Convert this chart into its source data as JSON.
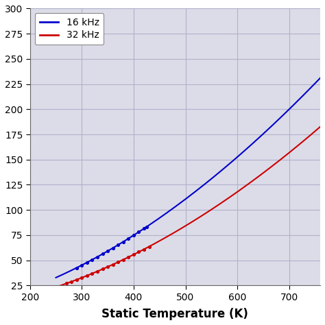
{
  "title": "",
  "xlabel": "Static Temperature (K)",
  "ylabel": "",
  "xlim": [
    200,
    760
  ],
  "ylim": [
    25,
    300
  ],
  "yticks": [
    25,
    50,
    75,
    100,
    125,
    150,
    175,
    200,
    225,
    250,
    275,
    300
  ],
  "xticks": [
    200,
    300,
    400,
    500,
    600,
    700
  ],
  "blue_color": "#0000CC",
  "red_color": "#CC0000",
  "bg_color": "#FFFFFF",
  "grid_color": "#B0B0CC",
  "legend_labels": [
    "16 kHz",
    "32 kHz"
  ],
  "blue_exp": 1.756,
  "red_exp": 1.85,
  "blue_scale": 0.002018,
  "red_scale": 0.000855,
  "dot_blue_x": [
    290,
    300,
    310,
    320,
    330,
    340,
    350,
    360,
    370,
    380,
    390,
    400,
    410,
    420,
    425
  ],
  "dot_red_x": [
    270,
    280,
    290,
    300,
    310,
    320,
    330,
    340,
    350,
    360,
    370,
    380,
    390,
    400,
    410,
    420,
    430
  ],
  "plot_start_x": 250
}
